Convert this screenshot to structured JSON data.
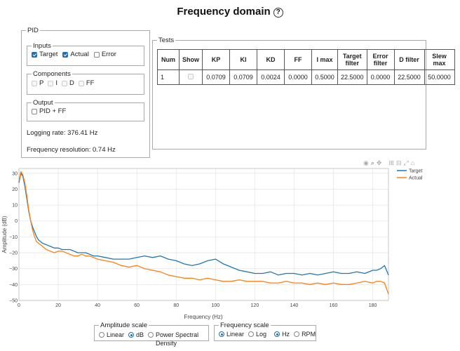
{
  "page": {
    "title": "Frequency domain",
    "help_icon": "?"
  },
  "pid": {
    "legend": "PID",
    "inputs": {
      "legend": "Inputs",
      "items": [
        {
          "label": "Target",
          "checked": true
        },
        {
          "label": "Actual",
          "checked": true
        },
        {
          "label": "Error",
          "checked": false
        }
      ]
    },
    "components": {
      "legend": "Components",
      "items": [
        {
          "label": "P"
        },
        {
          "label": "I"
        },
        {
          "label": "D"
        },
        {
          "label": "FF"
        }
      ]
    },
    "output": {
      "legend": "Output",
      "items": [
        {
          "label": "PID + FF",
          "checked": false
        }
      ]
    },
    "logging_rate": "Logging rate: 376.41 Hz",
    "frequency_resolution": "Frequency resolution: 0.74 Hz"
  },
  "tests": {
    "legend": "Tests",
    "headers": [
      "Num",
      "Show",
      "KP",
      "KI",
      "KD",
      "FF",
      "I max",
      "Target filter",
      "Error filter",
      "D filter",
      "Slew max"
    ],
    "rows": [
      {
        "num": "1",
        "kp": "0.0709",
        "ki": "0.0709",
        "kd": "0.0024",
        "ff": "0.0000",
        "imax": "0.5000",
        "target_filter": "22.5000",
        "error_filter": "0.0000",
        "d_filter": "22.5000",
        "slew_max": "50.0000"
      }
    ]
  },
  "amplitude_scale": {
    "legend": "Amplitude scale",
    "options": [
      "Linear",
      "dB",
      "Power Spectral Density"
    ],
    "selected": "dB"
  },
  "frequency_scale": {
    "legend": "Frequency scale",
    "options": [
      "Linear",
      "Log",
      "Hz",
      "RPM"
    ],
    "selected": [
      "Linear",
      "Hz"
    ]
  },
  "colors": {
    "target": "#1f77b4",
    "actual": "#ff7f0e"
  },
  "chart_data": {
    "type": "line",
    "title": "",
    "xlabel": "Frequency (Hz)",
    "ylabel": "Amplitude (dB)",
    "xlim": [
      0,
      188
    ],
    "ylim": [
      -50,
      33
    ],
    "xticks": [
      0,
      20,
      40,
      60,
      80,
      100,
      120,
      140,
      160,
      180
    ],
    "yticks": [
      -50,
      -40,
      -30,
      -20,
      -10,
      0,
      10,
      20,
      30
    ],
    "legend_position": "top-right",
    "grid": true,
    "series": [
      {
        "name": "Target",
        "color": "#1f77b4",
        "x": [
          0,
          1,
          2,
          3,
          4,
          5,
          6,
          7,
          8,
          9,
          10,
          12,
          14,
          16,
          18,
          20,
          22,
          24,
          26,
          28,
          30,
          32,
          34,
          36,
          38,
          40,
          44,
          48,
          52,
          56,
          60,
          64,
          68,
          72,
          76,
          80,
          84,
          88,
          92,
          96,
          100,
          104,
          108,
          112,
          116,
          120,
          124,
          128,
          132,
          136,
          140,
          144,
          148,
          152,
          156,
          160,
          164,
          168,
          172,
          176,
          180,
          182,
          184,
          186,
          188
        ],
        "y": [
          24,
          30,
          28,
          22,
          14,
          6,
          0,
          -4,
          -7,
          -10,
          -12,
          -14,
          -15,
          -16,
          -17,
          -17,
          -18,
          -18,
          -18,
          -19,
          -20,
          -20,
          -20,
          -21,
          -22,
          -22,
          -23,
          -24,
          -24,
          -24,
          -23,
          -22,
          -23,
          -22,
          -24,
          -25,
          -27,
          -28,
          -27,
          -25,
          -24,
          -27,
          -29,
          -31,
          -32,
          -33,
          -33,
          -32,
          -34,
          -33,
          -33,
          -34,
          -33,
          -34,
          -33,
          -32,
          -33,
          -33,
          -32,
          -33,
          -31,
          -31,
          -30,
          -28,
          -34
        ]
      },
      {
        "name": "Actual",
        "color": "#ff7f0e",
        "x": [
          0,
          1,
          2,
          3,
          4,
          5,
          6,
          7,
          8,
          9,
          10,
          12,
          14,
          16,
          18,
          20,
          22,
          24,
          26,
          28,
          30,
          32,
          34,
          36,
          38,
          40,
          44,
          48,
          52,
          56,
          60,
          64,
          68,
          72,
          76,
          80,
          84,
          88,
          92,
          96,
          100,
          104,
          108,
          112,
          116,
          120,
          124,
          128,
          132,
          136,
          140,
          144,
          148,
          152,
          156,
          160,
          164,
          168,
          172,
          176,
          180,
          182,
          184,
          186,
          188
        ],
        "y": [
          25,
          31,
          29,
          24,
          16,
          7,
          0,
          -6,
          -10,
          -13,
          -14,
          -16,
          -18,
          -19,
          -20,
          -19,
          -19,
          -20,
          -21,
          -22,
          -22,
          -21,
          -22,
          -22,
          -23,
          -24,
          -25,
          -26,
          -28,
          -29,
          -28,
          -30,
          -31,
          -32,
          -34,
          -35,
          -36,
          -36,
          -37,
          -36,
          -37,
          -38,
          -38,
          -37,
          -38,
          -38,
          -38,
          -39,
          -39,
          -38,
          -39,
          -39,
          -40,
          -39,
          -40,
          -39,
          -40,
          -40,
          -39,
          -38,
          -39,
          -38,
          -38,
          -39,
          -46
        ]
      }
    ]
  }
}
